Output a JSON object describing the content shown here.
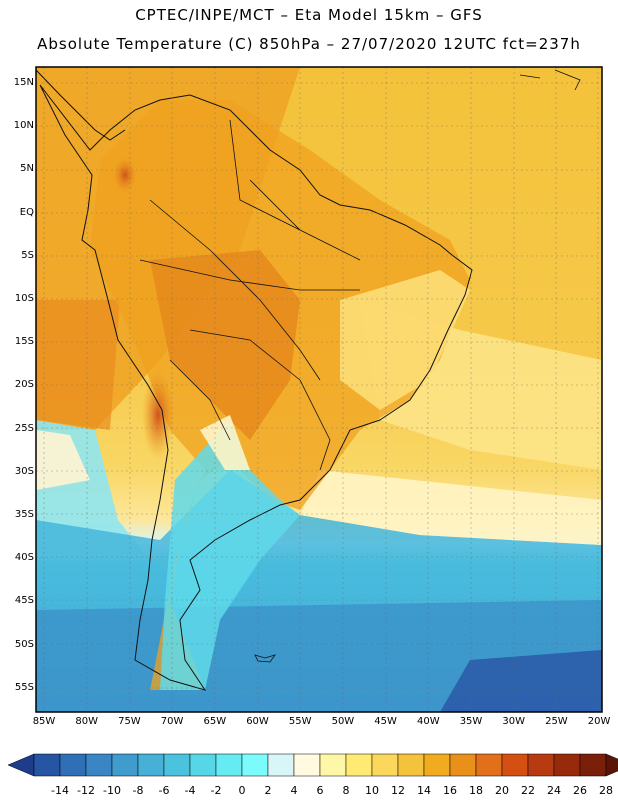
{
  "header": {
    "line1": "CPTEC/INPE/MCT –  Eta Model 15km – GFS",
    "line2": "Absolute Temperature (C) 850hPa – 27/07/2020 12UTC fct=237h"
  },
  "axes": {
    "lat_labels": [
      "15N",
      "10N",
      "5N",
      "EQ",
      "5S",
      "10S",
      "15S",
      "20S",
      "25S",
      "30S",
      "35S",
      "40S",
      "45S",
      "50S",
      "55S"
    ],
    "lon_labels": [
      "85W",
      "80W",
      "75W",
      "70W",
      "65W",
      "60W",
      "55W",
      "50W",
      "45W",
      "40W",
      "35W",
      "30W",
      "25W",
      "20W"
    ]
  },
  "colorbar": {
    "ticks": [
      "-14",
      "-12",
      "-10",
      "-8",
      "-6",
      "-4",
      "-2",
      "0",
      "2",
      "4",
      "6",
      "8",
      "10",
      "12",
      "14",
      "16",
      "18",
      "20",
      "22",
      "24",
      "26",
      "28"
    ],
    "colors": [
      "#1e3c8c",
      "#2656a3",
      "#2f6fb6",
      "#3a86c4",
      "#3f9ccd",
      "#46b0d6",
      "#4cc3de",
      "#56d6e6",
      "#66ebf2",
      "#7bfbfb",
      "#d8f5f8",
      "#fffae0",
      "#fff7a8",
      "#ffea74",
      "#fbd85c",
      "#f4c33c",
      "#f0ac1e",
      "#e8901a",
      "#e2701a",
      "#d45012",
      "#b83a10",
      "#982a0c",
      "#7a1f0a",
      "#5a1508"
    ]
  },
  "colors": {
    "cold_deep": "#2a55a8",
    "cold": "#3b8fc8",
    "cool": "#48c3e0",
    "cyan": "#68eef5",
    "pale": "#d9f6fa",
    "cream": "#fff6d8",
    "yellow": "#ffe27a",
    "gold": "#f5c23d",
    "orange": "#f1a821",
    "dark_orange": "#e78a1d",
    "hot": "#d45a14"
  }
}
